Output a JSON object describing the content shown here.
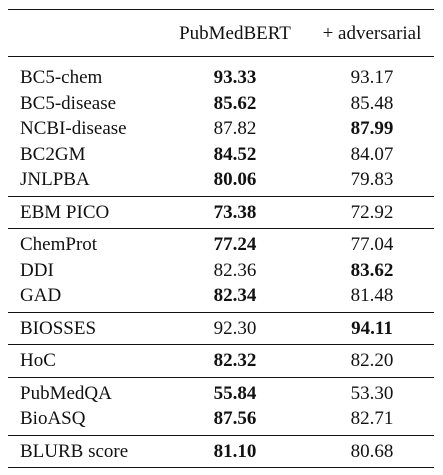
{
  "table": {
    "header": {
      "empty": "",
      "col_a": "PubMedBERT",
      "col_b": "+ adversarial"
    },
    "groups": [
      {
        "rows": [
          {
            "name": "BC5-chem",
            "a": "93.33",
            "b": "93.17",
            "bold": "a"
          },
          {
            "name": "BC5-disease",
            "a": "85.62",
            "b": "85.48",
            "bold": "a"
          },
          {
            "name": "NCBI-disease",
            "a": "87.82",
            "b": "87.99",
            "bold": "b"
          },
          {
            "name": "BC2GM",
            "a": "84.52",
            "b": "84.07",
            "bold": "a"
          },
          {
            "name": "JNLPBA",
            "a": "80.06",
            "b": "79.83",
            "bold": "a"
          }
        ]
      },
      {
        "rows": [
          {
            "name": "EBM PICO",
            "a": "73.38",
            "b": "72.92",
            "bold": "a"
          }
        ]
      },
      {
        "rows": [
          {
            "name": "ChemProt",
            "a": "77.24",
            "b": "77.04",
            "bold": "a"
          },
          {
            "name": "DDI",
            "a": "82.36",
            "b": "83.62",
            "bold": "b"
          },
          {
            "name": "GAD",
            "a": "82.34",
            "b": "81.48",
            "bold": "a"
          }
        ]
      },
      {
        "rows": [
          {
            "name": "BIOSSES",
            "a": "92.30",
            "b": "94.11",
            "bold": "b"
          }
        ]
      },
      {
        "rows": [
          {
            "name": "HoC",
            "a": "82.32",
            "b": "82.20",
            "bold": "a"
          }
        ]
      },
      {
        "rows": [
          {
            "name": "PubMedQA",
            "a": "55.84",
            "b": "53.30",
            "bold": "a"
          },
          {
            "name": "BioASQ",
            "a": "87.56",
            "b": "82.71",
            "bold": "a"
          }
        ]
      },
      {
        "rows": [
          {
            "name": "BLURB score",
            "a": "81.10",
            "b": "80.68",
            "bold": "a"
          }
        ]
      }
    ]
  }
}
